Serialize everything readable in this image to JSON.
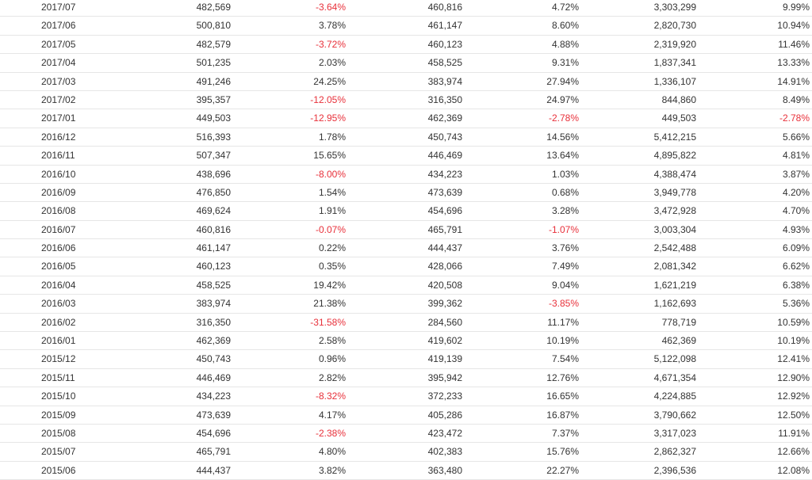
{
  "colors": {
    "text": "#333333",
    "negative": "#e8303a",
    "divider": "#e6e6e6"
  },
  "rows": [
    {
      "period": "2017/07",
      "v1": "482,569",
      "p1": "-3.64%",
      "v2": "460,816",
      "p2": "4.72%",
      "v3": "3,303,299",
      "p3": "9.99%"
    },
    {
      "period": "2017/06",
      "v1": "500,810",
      "p1": "3.78%",
      "v2": "461,147",
      "p2": "8.60%",
      "v3": "2,820,730",
      "p3": "10.94%"
    },
    {
      "period": "2017/05",
      "v1": "482,579",
      "p1": "-3.72%",
      "v2": "460,123",
      "p2": "4.88%",
      "v3": "2,319,920",
      "p3": "11.46%"
    },
    {
      "period": "2017/04",
      "v1": "501,235",
      "p1": "2.03%",
      "v2": "458,525",
      "p2": "9.31%",
      "v3": "1,837,341",
      "p3": "13.33%"
    },
    {
      "period": "2017/03",
      "v1": "491,246",
      "p1": "24.25%",
      "v2": "383,974",
      "p2": "27.94%",
      "v3": "1,336,107",
      "p3": "14.91%"
    },
    {
      "period": "2017/02",
      "v1": "395,357",
      "p1": "-12.05%",
      "v2": "316,350",
      "p2": "24.97%",
      "v3": "844,860",
      "p3": "8.49%"
    },
    {
      "period": "2017/01",
      "v1": "449,503",
      "p1": "-12.95%",
      "v2": "462,369",
      "p2": "-2.78%",
      "v3": "449,503",
      "p3": "-2.78%"
    },
    {
      "period": "2016/12",
      "v1": "516,393",
      "p1": "1.78%",
      "v2": "450,743",
      "p2": "14.56%",
      "v3": "5,412,215",
      "p3": "5.66%"
    },
    {
      "period": "2016/11",
      "v1": "507,347",
      "p1": "15.65%",
      "v2": "446,469",
      "p2": "13.64%",
      "v3": "4,895,822",
      "p3": "4.81%"
    },
    {
      "period": "2016/10",
      "v1": "438,696",
      "p1": "-8.00%",
      "v2": "434,223",
      "p2": "1.03%",
      "v3": "4,388,474",
      "p3": "3.87%"
    },
    {
      "period": "2016/09",
      "v1": "476,850",
      "p1": "1.54%",
      "v2": "473,639",
      "p2": "0.68%",
      "v3": "3,949,778",
      "p3": "4.20%"
    },
    {
      "period": "2016/08",
      "v1": "469,624",
      "p1": "1.91%",
      "v2": "454,696",
      "p2": "3.28%",
      "v3": "3,472,928",
      "p3": "4.70%"
    },
    {
      "period": "2016/07",
      "v1": "460,816",
      "p1": "-0.07%",
      "v2": "465,791",
      "p2": "-1.07%",
      "v3": "3,003,304",
      "p3": "4.93%"
    },
    {
      "period": "2016/06",
      "v1": "461,147",
      "p1": "0.22%",
      "v2": "444,437",
      "p2": "3.76%",
      "v3": "2,542,488",
      "p3": "6.09%"
    },
    {
      "period": "2016/05",
      "v1": "460,123",
      "p1": "0.35%",
      "v2": "428,066",
      "p2": "7.49%",
      "v3": "2,081,342",
      "p3": "6.62%"
    },
    {
      "period": "2016/04",
      "v1": "458,525",
      "p1": "19.42%",
      "v2": "420,508",
      "p2": "9.04%",
      "v3": "1,621,219",
      "p3": "6.38%"
    },
    {
      "period": "2016/03",
      "v1": "383,974",
      "p1": "21.38%",
      "v2": "399,362",
      "p2": "-3.85%",
      "v3": "1,162,693",
      "p3": "5.36%"
    },
    {
      "period": "2016/02",
      "v1": "316,350",
      "p1": "-31.58%",
      "v2": "284,560",
      "p2": "11.17%",
      "v3": "778,719",
      "p3": "10.59%"
    },
    {
      "period": "2016/01",
      "v1": "462,369",
      "p1": "2.58%",
      "v2": "419,602",
      "p2": "10.19%",
      "v3": "462,369",
      "p3": "10.19%"
    },
    {
      "period": "2015/12",
      "v1": "450,743",
      "p1": "0.96%",
      "v2": "419,139",
      "p2": "7.54%",
      "v3": "5,122,098",
      "p3": "12.41%"
    },
    {
      "period": "2015/11",
      "v1": "446,469",
      "p1": "2.82%",
      "v2": "395,942",
      "p2": "12.76%",
      "v3": "4,671,354",
      "p3": "12.90%"
    },
    {
      "period": "2015/10",
      "v1": "434,223",
      "p1": "-8.32%",
      "v2": "372,233",
      "p2": "16.65%",
      "v3": "4,224,885",
      "p3": "12.92%"
    },
    {
      "period": "2015/09",
      "v1": "473,639",
      "p1": "4.17%",
      "v2": "405,286",
      "p2": "16.87%",
      "v3": "3,790,662",
      "p3": "12.50%"
    },
    {
      "period": "2015/08",
      "v1": "454,696",
      "p1": "-2.38%",
      "v2": "423,472",
      "p2": "7.37%",
      "v3": "3,317,023",
      "p3": "11.91%"
    },
    {
      "period": "2015/07",
      "v1": "465,791",
      "p1": "4.80%",
      "v2": "402,383",
      "p2": "15.76%",
      "v3": "2,862,327",
      "p3": "12.66%"
    },
    {
      "period": "2015/06",
      "v1": "444,437",
      "p1": "3.82%",
      "v2": "363,480",
      "p2": "22.27%",
      "v3": "2,396,536",
      "p3": "12.08%"
    }
  ]
}
